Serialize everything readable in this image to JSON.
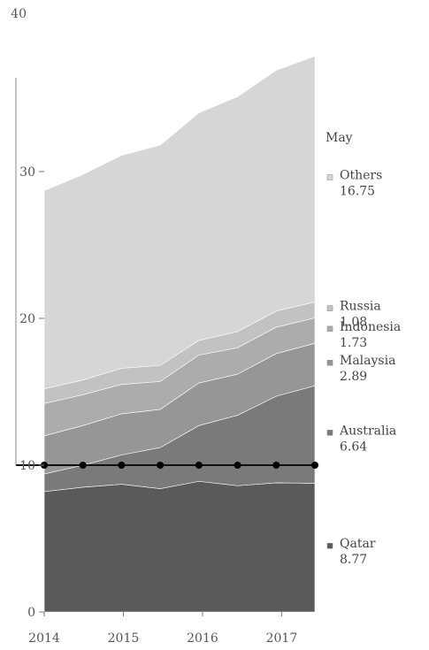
{
  "chart_data": {
    "type": "area",
    "stacked": true,
    "title": "",
    "xlabel": "",
    "ylabel": "",
    "corner_value": "40",
    "ylim": [
      0,
      40
    ],
    "yticks": [
      0,
      10,
      20,
      30
    ],
    "xticks": [
      "2014",
      "2015",
      "2016",
      "2017"
    ],
    "grid": false,
    "legend": "right",
    "x_start": 2014.0,
    "x_end": 2017.42,
    "month_label": "May",
    "series": [
      {
        "name": "Qatar",
        "value_label": "8.77",
        "color": "#5a5a5a",
        "values": [
          8.2,
          8.5,
          8.7,
          8.4,
          8.9,
          8.6,
          8.8,
          8.77
        ]
      },
      {
        "name": "Australia",
        "value_label": "6.64",
        "color": "#7a7a7a",
        "values": [
          1.2,
          1.5,
          2.0,
          2.8,
          3.8,
          4.8,
          5.9,
          6.64
        ]
      },
      {
        "name": "Malaysia",
        "value_label": "2.89",
        "color": "#969696",
        "values": [
          2.6,
          2.7,
          2.8,
          2.6,
          2.9,
          2.8,
          2.9,
          2.89
        ]
      },
      {
        "name": "Indonesia",
        "value_label": "1.73",
        "color": "#acacac",
        "values": [
          2.2,
          2.1,
          2.0,
          1.9,
          1.9,
          1.8,
          1.8,
          1.73
        ]
      },
      {
        "name": "Russia",
        "value_label": "1.08",
        "color": "#c2c2c2",
        "values": [
          1.0,
          1.0,
          1.1,
          1.1,
          1.0,
          1.1,
          1.1,
          1.08
        ]
      },
      {
        "name": "Others",
        "value_label": "16.75",
        "color": "#d6d6d6",
        "values": [
          13.5,
          14.0,
          14.5,
          15.0,
          15.5,
          16.0,
          16.4,
          16.75
        ]
      }
    ],
    "series_label_format": "{name} {value}",
    "reference_line_value": 10
  }
}
